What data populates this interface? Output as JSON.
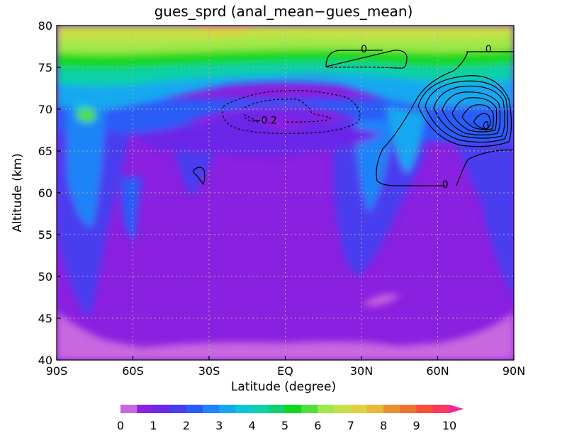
{
  "chart_data": {
    "type": "heatmap",
    "title": "gues_sprd (anal_mean−gues_mean)",
    "xlabel": "Latitude (degree)",
    "ylabel": "Altitude (km)",
    "xlim": [
      -90,
      90
    ],
    "ylim": [
      40,
      80
    ],
    "x_ticks": [
      {
        "value": -90,
        "label": "90S"
      },
      {
        "value": -60,
        "label": "60S"
      },
      {
        "value": -30,
        "label": "30S"
      },
      {
        "value": 0,
        "label": "EQ"
      },
      {
        "value": 30,
        "label": "30N"
      },
      {
        "value": 60,
        "label": "60N"
      },
      {
        "value": 90,
        "label": "90N"
      }
    ],
    "y_ticks": [
      {
        "value": 40,
        "label": "40"
      },
      {
        "value": 45,
        "label": "45"
      },
      {
        "value": 50,
        "label": "50"
      },
      {
        "value": 55,
        "label": "55"
      },
      {
        "value": 60,
        "label": "60"
      },
      {
        "value": 65,
        "label": "65"
      },
      {
        "value": 70,
        "label": "70"
      },
      {
        "value": 75,
        "label": "75"
      },
      {
        "value": 80,
        "label": "80"
      }
    ],
    "grid": true,
    "colorbar": {
      "levels": [
        0,
        0.5,
        1,
        1.5,
        2,
        2.5,
        3,
        3.5,
        4,
        4.5,
        5,
        5.5,
        6,
        6.5,
        7,
        7.5,
        8,
        8.5,
        9,
        9.5,
        10
      ],
      "colors": [
        "#c868e0",
        "#8a20e0",
        "#6a28e8",
        "#4a3cf0",
        "#2c5cf8",
        "#1e84f8",
        "#14a8f0",
        "#10c4d8",
        "#10d0a8",
        "#10d070",
        "#14d820",
        "#50e03c",
        "#a0e848",
        "#c8e048",
        "#e0d040",
        "#e8b838",
        "#e89030",
        "#f07030",
        "#f85038",
        "#f83860",
        "#f028a0"
      ],
      "extend": "max",
      "tick_labels": [
        {
          "value": 0,
          "label": "0"
        },
        {
          "value": 1,
          "label": "1"
        },
        {
          "value": 2,
          "label": "2"
        },
        {
          "value": 3,
          "label": "3"
        },
        {
          "value": 4,
          "label": "4"
        },
        {
          "value": 5,
          "label": "5"
        },
        {
          "value": 6,
          "label": "6"
        },
        {
          "value": 7,
          "label": "7"
        },
        {
          "value": 8,
          "label": "8"
        },
        {
          "value": 9,
          "label": "9"
        },
        {
          "value": 10,
          "label": "10"
        }
      ]
    },
    "contour_labels": [
      {
        "lat": 31,
        "alt": 77.2,
        "text": "0"
      },
      {
        "lat": 80,
        "alt": 77.2,
        "text": "0"
      },
      {
        "lat": 63,
        "alt": 61.0,
        "text": "0"
      },
      {
        "lat": -8,
        "alt": 68.7,
        "text": "−0.2"
      }
    ]
  }
}
